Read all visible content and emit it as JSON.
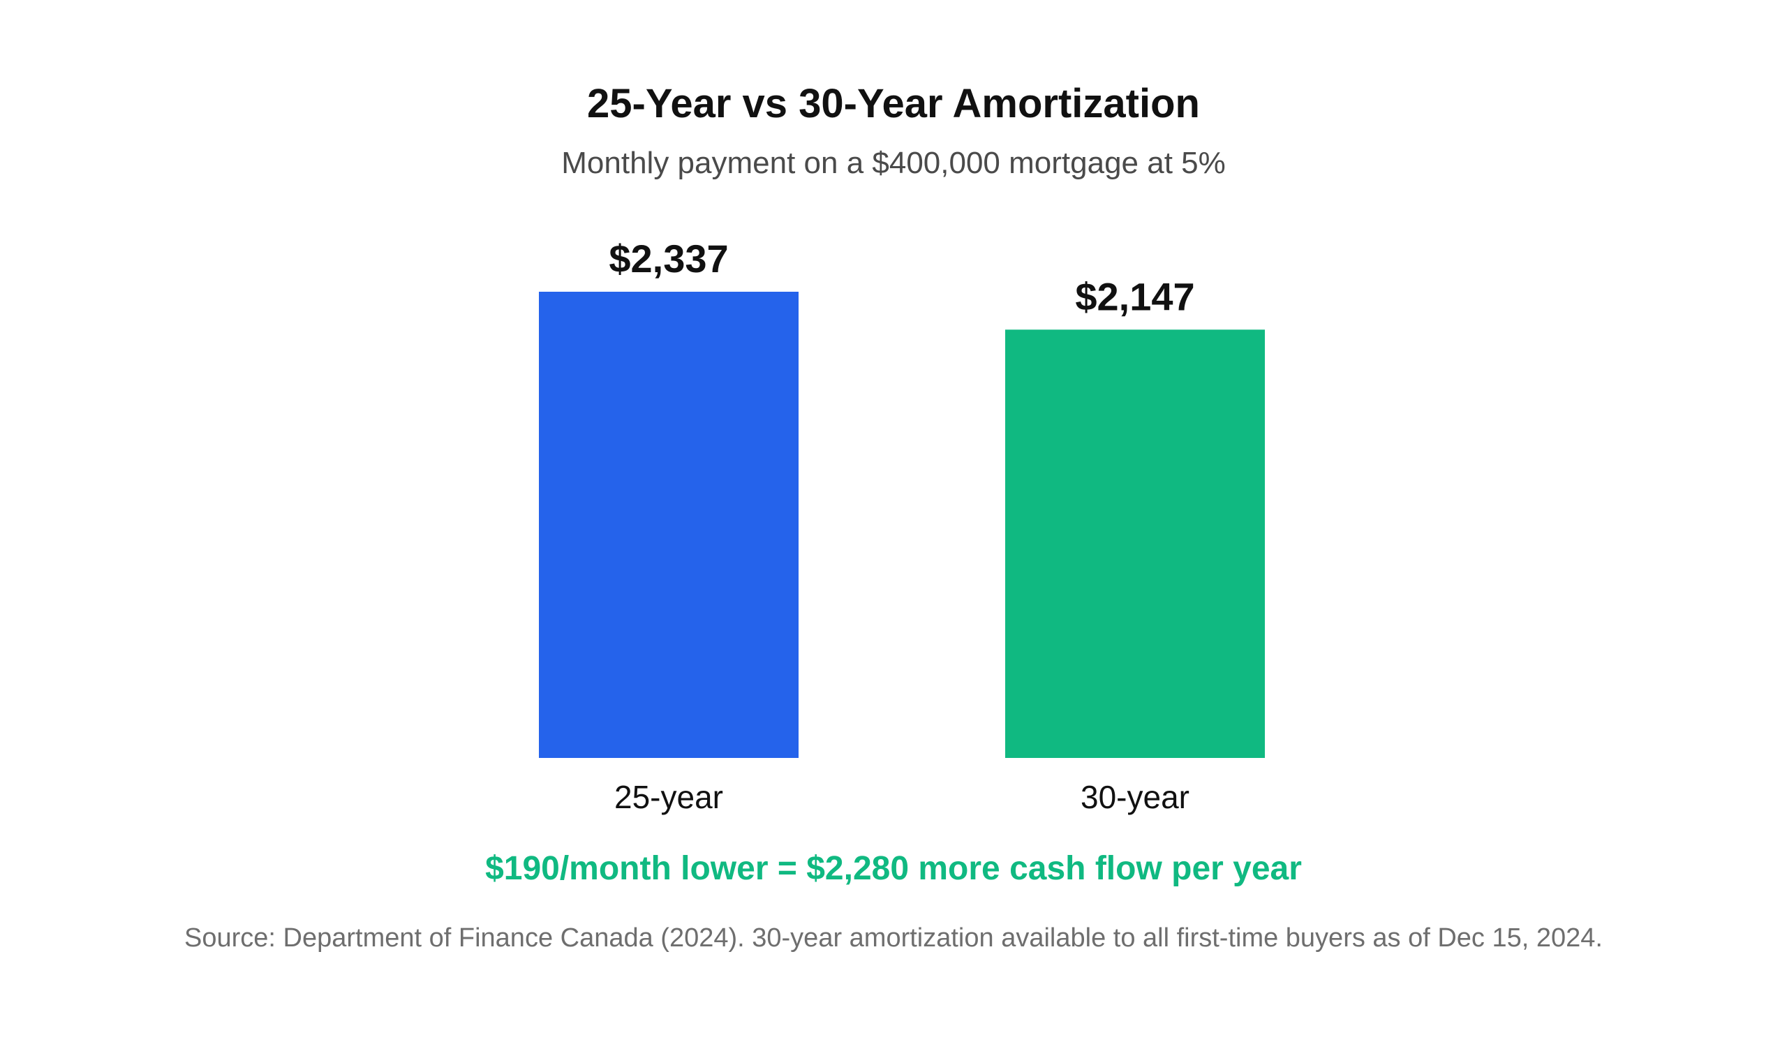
{
  "chart_data": {
    "type": "bar",
    "title": "25-Year vs 30-Year Amortization",
    "subtitle": "Monthly payment on a $400,000 mortgage at 5%",
    "categories": [
      "25-year",
      "30-year"
    ],
    "values": [
      2337,
      2147
    ],
    "value_labels": [
      "$2,337",
      "$2,147"
    ],
    "colors": [
      "#2563eb",
      "#10b981"
    ],
    "ylim": [
      0,
      2337
    ],
    "grid": false,
    "xlabel": "",
    "ylabel": ""
  },
  "annotation": {
    "text": "$190/month lower = $2,280 more cash flow per year",
    "color": "#10b981"
  },
  "source": "Source: Department of Finance Canada (2024). 30-year amortization available to all first-time buyers as of Dec 15, 2024."
}
